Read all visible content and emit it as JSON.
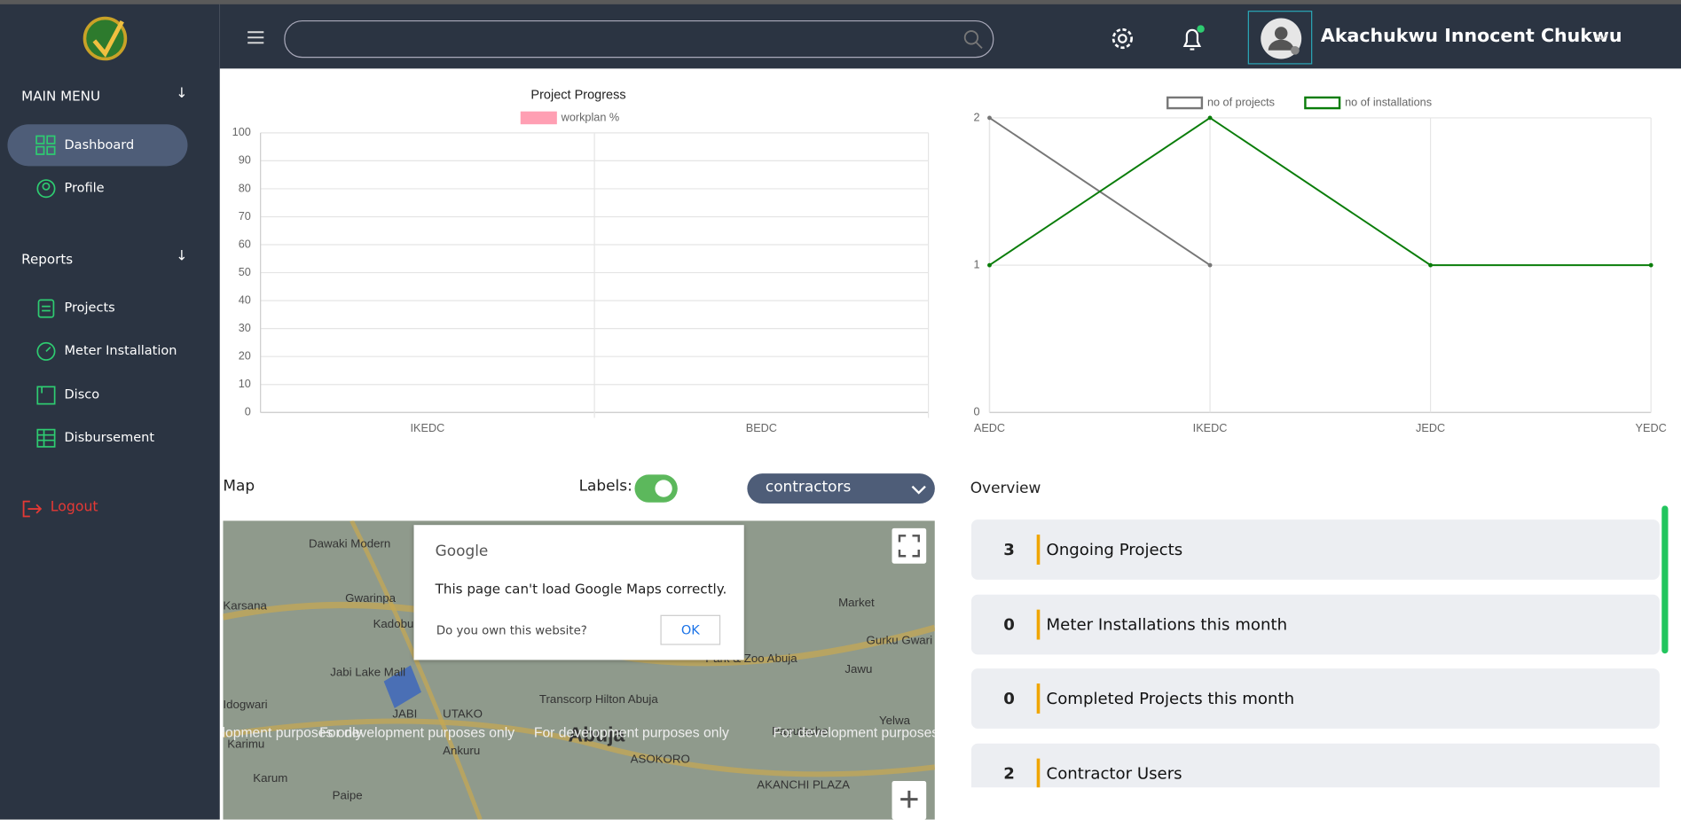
{
  "header": {
    "user_name": "Akachukwu Innocent Chukwu"
  },
  "sidebar": {
    "main_menu": "MAIN MENU",
    "main_items": [
      "Dashboard",
      "Profile"
    ],
    "reports": "Reports",
    "report_items": [
      "Projects",
      "Meter Installation",
      "Disco",
      "Disbursement"
    ],
    "logout": "Logout"
  },
  "chart_data": [
    {
      "type": "bar",
      "title": "Project Progress",
      "categories": [
        "IKEDC",
        "BEDC"
      ],
      "series": [
        {
          "name": "workplan %",
          "color": "#ff9fb3",
          "values": [
            0,
            0
          ]
        }
      ],
      "ylim": [
        0,
        100
      ],
      "yticks": [
        0,
        10,
        20,
        30,
        40,
        50,
        60,
        70,
        80,
        90,
        100
      ],
      "grid": true,
      "legend": "top"
    },
    {
      "type": "line",
      "categories": [
        "AEDC",
        "IKEDC",
        "JEDC",
        "YEDC"
      ],
      "series": [
        {
          "name": "no of projects",
          "color": "#777777",
          "values": [
            2,
            1,
            null,
            null
          ]
        },
        {
          "name": "no of installations",
          "color": "#0a7d0a",
          "values": [
            1,
            2,
            1,
            1
          ]
        }
      ],
      "ylim": [
        0,
        2
      ],
      "yticks": [
        0,
        1,
        2
      ],
      "grid": true,
      "legend": "top"
    }
  ],
  "map": {
    "title": "Map",
    "labels_toggle": "Labels:",
    "dropdown": "contractors",
    "dialog": {
      "brand": "Google",
      "message": "This page can't load Google Maps correctly.",
      "question": "Do you own this website?",
      "button": "OK"
    },
    "watermark": "For development purposes only",
    "places": [
      "Dawaki Modern",
      "Karsana",
      "Gwarinpa",
      "Kadobu",
      "Jabi Lake Mall",
      "Idogwari",
      "JABI",
      "UTAKO",
      "Transcorp Hilton Abuja",
      "Abuja",
      "Karimu",
      "Ankuru",
      "Karum",
      "Paipe",
      "ASOKORO",
      "AKANCHI PLAZA",
      "Gurku Gwari",
      "Jawu",
      "Market",
      "Yelwa",
      "Paputache",
      "Park & Zoo Abuja"
    ]
  },
  "overview": {
    "title": "Overview",
    "items": [
      {
        "count": 3,
        "label": "Ongoing Projects"
      },
      {
        "count": 0,
        "label": "Meter Installations this month"
      },
      {
        "count": 0,
        "label": "Completed Projects this month"
      },
      {
        "count": 2,
        "label": "Contractor Users"
      }
    ]
  }
}
